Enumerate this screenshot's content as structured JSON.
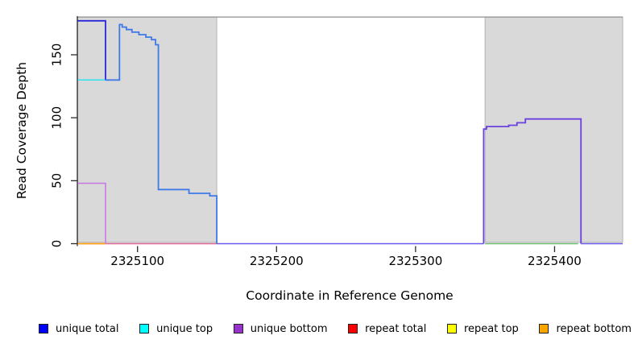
{
  "figure": {
    "xlabel": "Coordinate in Reference Genome",
    "ylabel": "Read Coverage Depth"
  },
  "chart_data": {
    "type": "line",
    "title": "",
    "xlabel": "Coordinate in Reference Genome",
    "ylabel": "Read Coverage Depth",
    "xlim": [
      2325057,
      2325449
    ],
    "ylim": [
      0,
      180
    ],
    "x_ticks": [
      "2325100",
      "2325200",
      "2325300",
      "2325400"
    ],
    "x_tick_values": [
      2325100,
      2325200,
      2325300,
      2325400
    ],
    "y_ticks": [
      "0",
      "50",
      "100",
      "150"
    ],
    "y_tick_values": [
      0,
      50,
      100,
      150
    ],
    "grid": false,
    "legend_position": "bottom",
    "masked_regions": [
      [
        2325057,
        2325157
      ],
      [
        2325350,
        2325449
      ]
    ],
    "region_fill": "#d9d9d9",
    "region_border": "#b4b4b4",
    "top_border_color": "#8f8f8f",
    "series": [
      {
        "name": "repeat-total-zero-line",
        "color": "#dd6492",
        "width": 1.5,
        "points": [
          [
            2325057,
            0
          ],
          [
            2325157,
            0
          ]
        ]
      },
      {
        "name": "unique-top",
        "color": "#2ae4ee",
        "width": 1.5,
        "points": [
          [
            2325057,
            130
          ],
          [
            2325087,
            130
          ],
          [
            2325087,
            174
          ]
        ]
      },
      {
        "name": "unique-bottom-left",
        "color": "#c876e2",
        "width": 1.5,
        "points": [
          [
            2325057,
            48
          ],
          [
            2325077,
            48
          ],
          [
            2325077,
            0
          ]
        ]
      },
      {
        "name": "repeat-bottom-zero-line",
        "color": "#ffa500",
        "width": 1.5,
        "points": [
          [
            2325057,
            0
          ],
          [
            2325077,
            0
          ]
        ]
      },
      {
        "name": "zero-line-mid",
        "color": "#6a5aec",
        "width": 1.6,
        "points": [
          [
            2325157,
            0
          ],
          [
            2325349,
            0
          ]
        ]
      },
      {
        "name": "zero-line-green",
        "color": "#6fbf73",
        "width": 1.4,
        "points": [
          [
            2325350,
            0
          ],
          [
            2325417,
            0
          ]
        ]
      },
      {
        "name": "zero-line-right",
        "color": "#6a5aec",
        "width": 1.6,
        "points": [
          [
            2325419,
            0
          ],
          [
            2325449,
            0
          ]
        ]
      },
      {
        "name": "unique-total-left",
        "color": "#2929d8",
        "width": 1.8,
        "points": [
          [
            2325057,
            177
          ],
          [
            2325077,
            177
          ],
          [
            2325077,
            130
          ]
        ]
      },
      {
        "name": "unique-total-main",
        "color": "#4079e8",
        "width": 1.8,
        "points": [
          [
            2325077,
            130
          ],
          [
            2325087,
            130
          ],
          [
            2325087,
            174
          ],
          [
            2325089,
            174
          ],
          [
            2325089,
            172
          ],
          [
            2325092,
            172
          ],
          [
            2325092,
            170
          ],
          [
            2325096,
            170
          ],
          [
            2325096,
            168
          ],
          [
            2325101,
            168
          ],
          [
            2325101,
            166
          ],
          [
            2325106,
            166
          ],
          [
            2325106,
            164
          ],
          [
            2325110,
            164
          ],
          [
            2325110,
            162
          ],
          [
            2325113,
            162
          ],
          [
            2325113,
            158
          ],
          [
            2325115,
            158
          ],
          [
            2325115,
            43
          ],
          [
            2325137,
            43
          ],
          [
            2325137,
            40
          ],
          [
            2325152,
            40
          ],
          [
            2325152,
            38
          ],
          [
            2325157,
            38
          ],
          [
            2325157,
            0
          ]
        ]
      },
      {
        "name": "unique-bottom-right",
        "color": "#6b42e0",
        "width": 1.8,
        "points": [
          [
            2325349,
            0
          ],
          [
            2325349,
            91
          ],
          [
            2325351,
            91
          ],
          [
            2325351,
            93
          ],
          [
            2325367,
            93
          ],
          [
            2325367,
            94
          ],
          [
            2325373,
            94
          ],
          [
            2325373,
            96
          ],
          [
            2325379,
            96
          ],
          [
            2325379,
            99
          ],
          [
            2325419,
            99
          ],
          [
            2325419,
            0
          ]
        ]
      }
    ],
    "legend": [
      {
        "label": "unique total",
        "color": "#0000ff"
      },
      {
        "label": "unique top",
        "color": "#00ffff"
      },
      {
        "label": "unique bottom",
        "color": "#9932cc"
      },
      {
        "label": "repeat total",
        "color": "#ff0000"
      },
      {
        "label": "repeat top",
        "color": "#ffff00"
      },
      {
        "label": "repeat bottom",
        "color": "#ffa500"
      }
    ]
  }
}
